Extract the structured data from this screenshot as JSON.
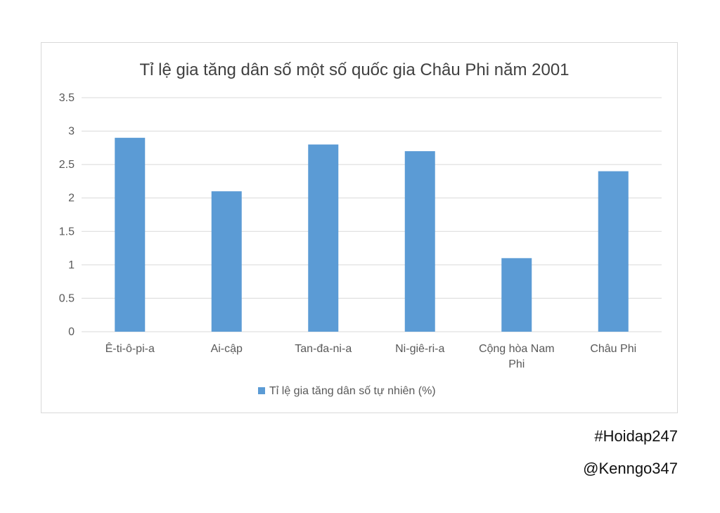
{
  "chart_data": {
    "type": "bar",
    "title": "Tỉ lệ gia tăng dân số một số quốc gia Châu Phi năm 2001",
    "categories": [
      "Ê-ti-ô-pi-a",
      "Ai-cập",
      "Tan-đa-ni-a",
      "Ni-giê-ri-a",
      "Cộng hòa Nam Phi",
      "Châu Phi"
    ],
    "category_lines": [
      [
        "Ê-ti-ô-pi-a"
      ],
      [
        "Ai-cập"
      ],
      [
        "Tan-đa-ni-a"
      ],
      [
        "Ni-giê-ri-a"
      ],
      [
        "Cộng hòa Nam",
        "Phi"
      ],
      [
        "Châu Phi"
      ]
    ],
    "series": [
      {
        "name": "Tỉ lệ gia tăng dân số tự nhiên (%)",
        "values": [
          2.9,
          2.1,
          2.8,
          2.7,
          1.1,
          2.4
        ],
        "color": "#5b9bd5"
      }
    ],
    "ylim": [
      0,
      3.5
    ],
    "yticks": [
      "0",
      "0.5",
      "1",
      "1.5",
      "2",
      "2.5",
      "3",
      "3.5"
    ],
    "xlabel": "",
    "ylabel": "",
    "grid": true,
    "legend": "bottom",
    "colors": {
      "gridline": "#d9d9d9",
      "axis_text": "#595959",
      "title_text": "#404040"
    }
  },
  "watermarks": [
    "#Hoidap247",
    "@Kenngo347"
  ]
}
